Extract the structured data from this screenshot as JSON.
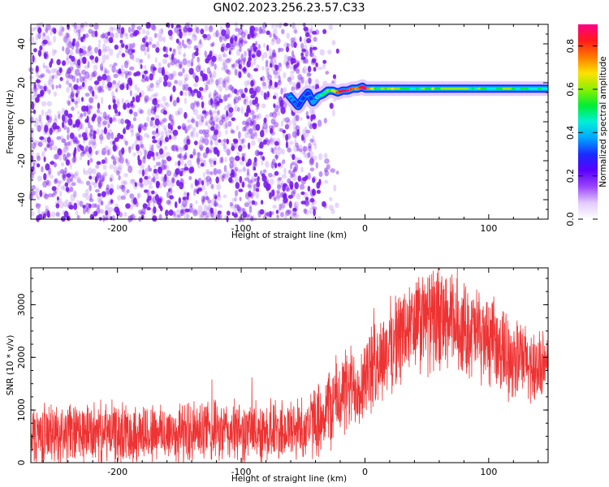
{
  "figure_title": "GN02.2023.256.23.57.C33",
  "colors": {
    "snr_line": "#ee3333",
    "spectrogram_noise": "#7a1bf0",
    "colormap": [
      "#ffffff",
      "#e3ccff",
      "#9b45ff",
      "#5a00ff",
      "#1a2bff",
      "#00a6ff",
      "#00f0d8",
      "#00ee33",
      "#8cf000",
      "#ffe100",
      "#ff7a00",
      "#ff1a1a",
      "#ff0088"
    ]
  },
  "chart_data": [
    {
      "type": "heatmap",
      "panel": "spectrogram",
      "xlabel": "Height of straight line (km)",
      "ylabel": "Frequency (Hz)",
      "xlim": [
        -270,
        148
      ],
      "ylim": [
        -50,
        50
      ],
      "xticks": [
        -200,
        -100,
        0,
        100
      ],
      "yticks": [
        -40,
        -20,
        0,
        20,
        40
      ],
      "xtick_labels": [
        "-200",
        "-100",
        "0",
        "100"
      ],
      "ytick_labels": [
        "-40",
        "-20",
        "0",
        "20",
        "40"
      ],
      "colorbar": {
        "label": "Normalized spectral amplitude",
        "range": [
          0,
          0.9
        ],
        "ticks": [
          0,
          0.2,
          0.4,
          0.6,
          0.8
        ],
        "tick_labels": [
          "0.0",
          "0.2",
          "0.4",
          "0.6",
          "0.8"
        ]
      },
      "tone_track": {
        "x": [
          -62,
          -58,
          -54,
          -50,
          -46,
          -42,
          -38,
          -34,
          -30,
          -26,
          -22,
          -18,
          -14,
          -10,
          -6,
          -2,
          0,
          10,
          20,
          40,
          60,
          80,
          100,
          120,
          148
        ],
        "y": [
          14,
          11,
          8,
          12,
          15,
          10,
          13,
          14,
          16,
          16,
          15,
          16,
          16,
          17,
          17,
          18,
          17,
          17,
          17,
          17,
          17,
          17,
          17,
          17,
          17
        ],
        "amplitude": [
          0.3,
          0.35,
          0.3,
          0.3,
          0.25,
          0.35,
          0.4,
          0.5,
          0.5,
          0.6,
          0.75,
          0.85,
          0.85,
          0.8,
          0.7,
          0.85,
          0.9,
          0.5,
          0.6,
          0.5,
          0.6,
          0.55,
          0.5,
          0.55,
          0.5
        ]
      },
      "noise_region_x": [
        -270,
        -40
      ]
    },
    {
      "type": "line",
      "panel": "snr",
      "xlabel": "Height of straight line (km)",
      "ylabel": "SNR (10 * v/v)",
      "xlim": [
        -270,
        148
      ],
      "ylim": [
        0,
        3700
      ],
      "xticks": [
        -200,
        -100,
        0,
        100
      ],
      "yticks": [
        0,
        1000,
        2000,
        3000
      ],
      "xtick_labels": [
        "-200",
        "-100",
        "0",
        "100"
      ],
      "ytick_labels": [
        "0",
        "1000",
        "2000",
        "3000"
      ],
      "envelope": {
        "x": [
          -270,
          -200,
          -150,
          -100,
          -60,
          -45,
          -35,
          -25,
          -15,
          -5,
          0,
          10,
          20,
          30,
          40,
          50,
          60,
          70,
          80,
          90,
          100,
          110,
          120,
          130,
          140,
          148
        ],
        "mean": [
          550,
          560,
          570,
          580,
          620,
          700,
          900,
          1150,
          1350,
          1500,
          1600,
          1900,
          2200,
          2450,
          2600,
          2700,
          2700,
          2650,
          2550,
          2450,
          2300,
          2150,
          2000,
          1900,
          1800,
          1750
        ],
        "spread": [
          550,
          550,
          560,
          560,
          580,
          600,
          700,
          800,
          800,
          800,
          800,
          800,
          850,
          900,
          950,
          950,
          950,
          900,
          850,
          850,
          800,
          800,
          750,
          700,
          700,
          650
        ]
      }
    }
  ]
}
